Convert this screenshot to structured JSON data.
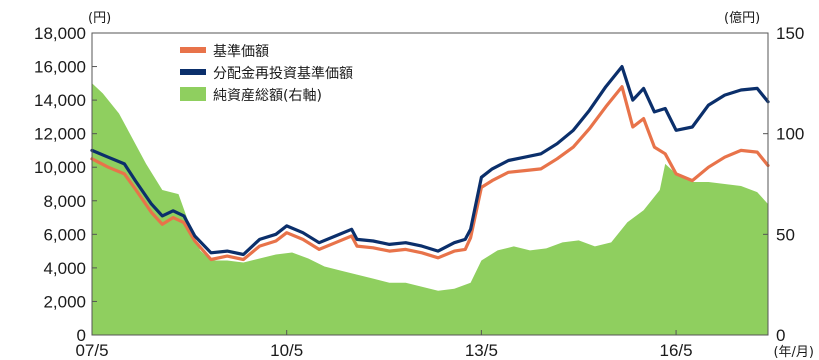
{
  "chart_data": {
    "type": "line",
    "left_axis_unit": "(円)",
    "right_axis_unit": "(億円)",
    "x_axis_unit": "(年/月)",
    "ylim_left": [
      0,
      18000
    ],
    "ylim_right": [
      0,
      150
    ],
    "x_range": [
      "2007-05",
      "2017-10"
    ],
    "left_ticks": [
      "0",
      "2,000",
      "4,000",
      "6,000",
      "8,000",
      "10,000",
      "12,000",
      "14,000",
      "16,000",
      "18,000"
    ],
    "left_tick_values": [
      0,
      2000,
      4000,
      6000,
      8000,
      10000,
      12000,
      14000,
      16000,
      18000
    ],
    "right_ticks": [
      "0",
      "50",
      "100",
      "150"
    ],
    "right_tick_values": [
      0,
      50,
      100,
      150
    ],
    "x_ticks": [
      {
        "date": "2007-05",
        "label": "07/5"
      },
      {
        "date": "2010-05",
        "label": "10/5"
      },
      {
        "date": "2013-05",
        "label": "13/5"
      },
      {
        "date": "2016-05",
        "label": "16/5"
      }
    ],
    "legend_position": "top-left",
    "grid": false,
    "series": [
      {
        "name": "基準価額",
        "color": "#e8734a",
        "type": "line",
        "axis": "left",
        "points": [
          [
            "2007-05",
            10500
          ],
          [
            "2007-08",
            10000
          ],
          [
            "2007-11",
            9600
          ],
          [
            "2008-01",
            8700
          ],
          [
            "2008-04",
            7300
          ],
          [
            "2008-06",
            6600
          ],
          [
            "2008-08",
            7000
          ],
          [
            "2008-10",
            6700
          ],
          [
            "2008-12",
            5600
          ],
          [
            "2009-03",
            4500
          ],
          [
            "2009-06",
            4700
          ],
          [
            "2009-09",
            4500
          ],
          [
            "2009-12",
            5300
          ],
          [
            "2010-03",
            5600
          ],
          [
            "2010-05",
            6100
          ],
          [
            "2010-08",
            5700
          ],
          [
            "2010-11",
            5100
          ],
          [
            "2011-02",
            5500
          ],
          [
            "2011-05",
            5900
          ],
          [
            "2011-06",
            5300
          ],
          [
            "2011-09",
            5200
          ],
          [
            "2011-12",
            5000
          ],
          [
            "2012-03",
            5100
          ],
          [
            "2012-06",
            4900
          ],
          [
            "2012-09",
            4600
          ],
          [
            "2012-12",
            5000
          ],
          [
            "2013-02",
            5100
          ],
          [
            "2013-03",
            5800
          ],
          [
            "2013-05",
            8800
          ],
          [
            "2013-07",
            9200
          ],
          [
            "2013-10",
            9700
          ],
          [
            "2014-01",
            9800
          ],
          [
            "2014-04",
            9900
          ],
          [
            "2014-07",
            10500
          ],
          [
            "2014-10",
            11200
          ],
          [
            "2015-01",
            12300
          ],
          [
            "2015-04",
            13600
          ],
          [
            "2015-07",
            14800
          ],
          [
            "2015-09",
            12400
          ],
          [
            "2015-11",
            12900
          ],
          [
            "2016-01",
            11200
          ],
          [
            "2016-03",
            10800
          ],
          [
            "2016-05",
            9600
          ],
          [
            "2016-08",
            9200
          ],
          [
            "2016-11",
            10000
          ],
          [
            "2017-02",
            10600
          ],
          [
            "2017-05",
            11000
          ],
          [
            "2017-08",
            10900
          ],
          [
            "2017-10",
            10100
          ]
        ]
      },
      {
        "name": "分配金再投資基準価額",
        "color": "#0b2f6b",
        "type": "line",
        "axis": "left",
        "points": [
          [
            "2007-05",
            11000
          ],
          [
            "2007-08",
            10600
          ],
          [
            "2007-11",
            10200
          ],
          [
            "2008-01",
            9200
          ],
          [
            "2008-04",
            7800
          ],
          [
            "2008-06",
            7100
          ],
          [
            "2008-08",
            7400
          ],
          [
            "2008-10",
            7100
          ],
          [
            "2008-12",
            5900
          ],
          [
            "2009-03",
            4900
          ],
          [
            "2009-06",
            5000
          ],
          [
            "2009-09",
            4800
          ],
          [
            "2009-12",
            5700
          ],
          [
            "2010-03",
            6000
          ],
          [
            "2010-05",
            6500
          ],
          [
            "2010-08",
            6100
          ],
          [
            "2010-11",
            5500
          ],
          [
            "2011-02",
            5900
          ],
          [
            "2011-05",
            6300
          ],
          [
            "2011-06",
            5700
          ],
          [
            "2011-09",
            5600
          ],
          [
            "2011-12",
            5400
          ],
          [
            "2012-03",
            5500
          ],
          [
            "2012-06",
            5300
          ],
          [
            "2012-09",
            5000
          ],
          [
            "2012-12",
            5500
          ],
          [
            "2013-02",
            5700
          ],
          [
            "2013-03",
            6300
          ],
          [
            "2013-05",
            9400
          ],
          [
            "2013-07",
            9900
          ],
          [
            "2013-10",
            10400
          ],
          [
            "2014-01",
            10600
          ],
          [
            "2014-04",
            10800
          ],
          [
            "2014-07",
            11400
          ],
          [
            "2014-10",
            12200
          ],
          [
            "2015-01",
            13400
          ],
          [
            "2015-04",
            14800
          ],
          [
            "2015-07",
            16000
          ],
          [
            "2015-09",
            14000
          ],
          [
            "2015-11",
            14700
          ],
          [
            "2016-01",
            13300
          ],
          [
            "2016-03",
            13500
          ],
          [
            "2016-05",
            12200
          ],
          [
            "2016-08",
            12400
          ],
          [
            "2016-11",
            13700
          ],
          [
            "2017-02",
            14300
          ],
          [
            "2017-05",
            14600
          ],
          [
            "2017-08",
            14700
          ],
          [
            "2017-10",
            13900
          ]
        ]
      },
      {
        "name": "純資産総額(右軸)",
        "color": "#8fcf5f",
        "type": "area",
        "axis": "right",
        "points": [
          [
            "2007-05",
            125
          ],
          [
            "2007-07",
            120
          ],
          [
            "2007-10",
            110
          ],
          [
            "2007-12",
            100
          ],
          [
            "2008-03",
            85
          ],
          [
            "2008-06",
            72
          ],
          [
            "2008-09",
            70
          ],
          [
            "2008-11",
            55
          ],
          [
            "2009-01",
            42
          ],
          [
            "2009-03",
            37
          ],
          [
            "2009-06",
            37
          ],
          [
            "2009-09",
            36
          ],
          [
            "2009-12",
            38
          ],
          [
            "2010-03",
            40
          ],
          [
            "2010-06",
            41
          ],
          [
            "2010-09",
            38
          ],
          [
            "2010-12",
            34
          ],
          [
            "2011-03",
            32
          ],
          [
            "2011-06",
            30
          ],
          [
            "2011-09",
            28
          ],
          [
            "2011-12",
            26
          ],
          [
            "2012-03",
            26
          ],
          [
            "2012-06",
            24
          ],
          [
            "2012-09",
            22
          ],
          [
            "2012-12",
            23
          ],
          [
            "2013-03",
            26
          ],
          [
            "2013-05",
            37
          ],
          [
            "2013-08",
            42
          ],
          [
            "2013-11",
            44
          ],
          [
            "2014-02",
            42
          ],
          [
            "2014-05",
            43
          ],
          [
            "2014-08",
            46
          ],
          [
            "2014-11",
            47
          ],
          [
            "2015-02",
            44
          ],
          [
            "2015-05",
            46
          ],
          [
            "2015-08",
            56
          ],
          [
            "2015-11",
            62
          ],
          [
            "2016-02",
            72
          ],
          [
            "2016-03",
            85
          ],
          [
            "2016-05",
            80
          ],
          [
            "2016-08",
            76
          ],
          [
            "2016-11",
            76
          ],
          [
            "2017-02",
            75
          ],
          [
            "2017-05",
            74
          ],
          [
            "2017-08",
            71
          ],
          [
            "2017-10",
            65
          ]
        ]
      }
    ]
  }
}
